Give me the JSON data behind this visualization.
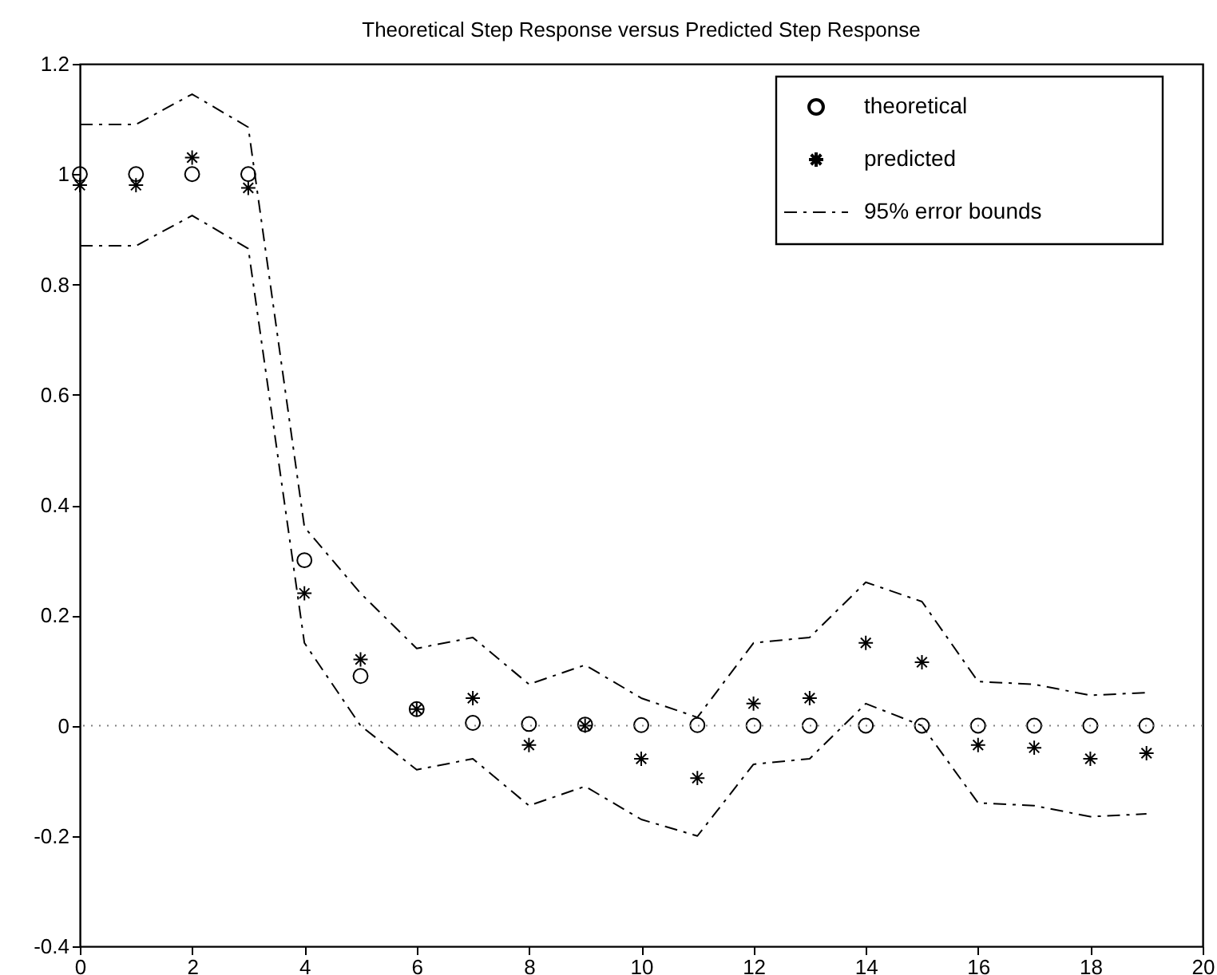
{
  "chart_data": {
    "type": "scatter",
    "title": "Theoretical Step Response versus Predicted Step Response",
    "x": [
      0,
      1,
      2,
      3,
      4,
      5,
      6,
      7,
      8,
      9,
      10,
      11,
      12,
      13,
      14,
      15,
      16,
      17,
      18,
      19
    ],
    "series": [
      {
        "name": "theoretical",
        "type": "scatter",
        "marker": "circle",
        "color": "#000000",
        "values": [
          1,
          1,
          1,
          1,
          0.3,
          0.09,
          0.03,
          0.005,
          0.003,
          0.002,
          0.001,
          0.001,
          0,
          0,
          0,
          0,
          0,
          0,
          0,
          0
        ]
      },
      {
        "name": "predicted",
        "type": "scatter",
        "marker": "cross",
        "color": "#000000",
        "values": [
          0.98,
          0.98,
          1.03,
          0.975,
          0.24,
          0.12,
          0.03,
          0.05,
          -0.035,
          0,
          -0.06,
          -0.095,
          0.04,
          0.05,
          0.15,
          0.115,
          -0.035,
          -0.04,
          -0.06,
          -0.05
        ]
      },
      {
        "name": "95% error bounds",
        "type": "line",
        "line_style": "dashed",
        "color": "#000000",
        "values": [
          1.09,
          1.09,
          1.145,
          1.085,
          0.36,
          0.24,
          0.14,
          0.16,
          0.075,
          0.11,
          0.05,
          0.015,
          0.15,
          0.16,
          0.26,
          0.225,
          0.08,
          0.075,
          0.055,
          0.06
        ]
      },
      {
        "type": "line",
        "line_style": "dashed",
        "color": "#000000",
        "values": [
          0.87,
          0.87,
          0.925,
          0.865,
          0.15,
          0.0,
          -0.08,
          -0.06,
          -0.145,
          -0.11,
          -0.17,
          -0.2,
          -0.07,
          -0.06,
          0.04,
          0.0,
          -0.14,
          -0.145,
          -0.165,
          -0.16
        ]
      }
    ],
    "xlim": [
      0,
      20
    ],
    "xticks": [
      0,
      2,
      4,
      6,
      8,
      10,
      12,
      14,
      16,
      18,
      20
    ],
    "ylim": [
      -0.4,
      1.2
    ],
    "yticks": [
      -0.4,
      -0.2,
      0,
      0.2,
      0.4,
      0.6,
      0.8,
      1,
      1.2
    ],
    "ref_lines": [
      {
        "axis": "y",
        "value": 0,
        "color": "#808080",
        "line_style": "dotted"
      }
    ],
    "grid": false,
    "legend": "top right"
  }
}
